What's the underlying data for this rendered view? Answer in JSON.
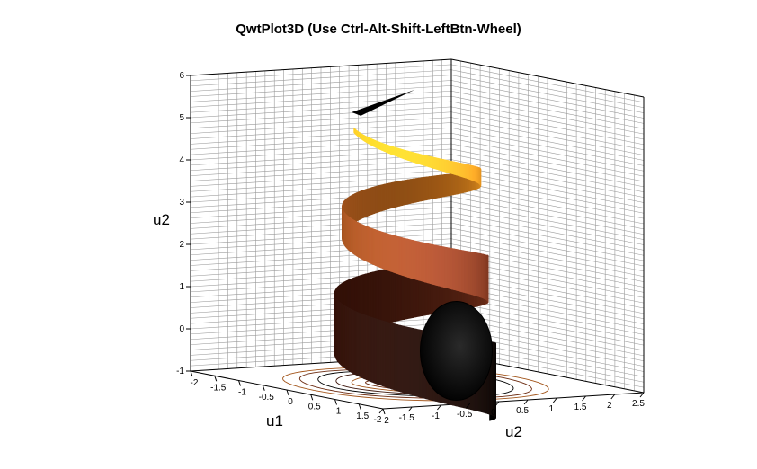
{
  "window": {
    "title": "QwtPlot3D (Use Ctrl-Alt-Shift-LeftBtn-Wheel)"
  },
  "chart_data": {
    "type": "surface3d",
    "title": "QwtPlot3D (Use Ctrl-Alt-Shift-LeftBtn-Wheel)",
    "axes": {
      "x": {
        "label": "u1",
        "range": [
          -2,
          2.5
        ],
        "ticks": [
          "-2",
          "-1.5",
          "-1",
          "-0.5",
          "0",
          "0.5",
          "1",
          "1.5",
          "2",
          "2.5"
        ]
      },
      "y": {
        "label": "u2",
        "range": [
          -2,
          2
        ],
        "ticks": [
          "-2",
          "-1.5",
          "-1",
          "-0.5",
          "0",
          "0.5",
          "1",
          "1.5",
          "2"
        ]
      },
      "z": {
        "label": "u2",
        "range": [
          -1,
          6
        ],
        "ticks": [
          "-1",
          "0",
          "1",
          "2",
          "3",
          "4",
          "5",
          "6"
        ]
      }
    },
    "surface": {
      "shape": "helical tube",
      "z_range": [
        -1,
        5
      ],
      "turns": 2.5,
      "radius_base": 1.0,
      "radius_top": 0.05,
      "colormap": [
        "#000000",
        "#3a1208",
        "#8a3c22",
        "#c8701a",
        "#f0c020"
      ]
    },
    "grid": true,
    "floor_isolines": true
  }
}
